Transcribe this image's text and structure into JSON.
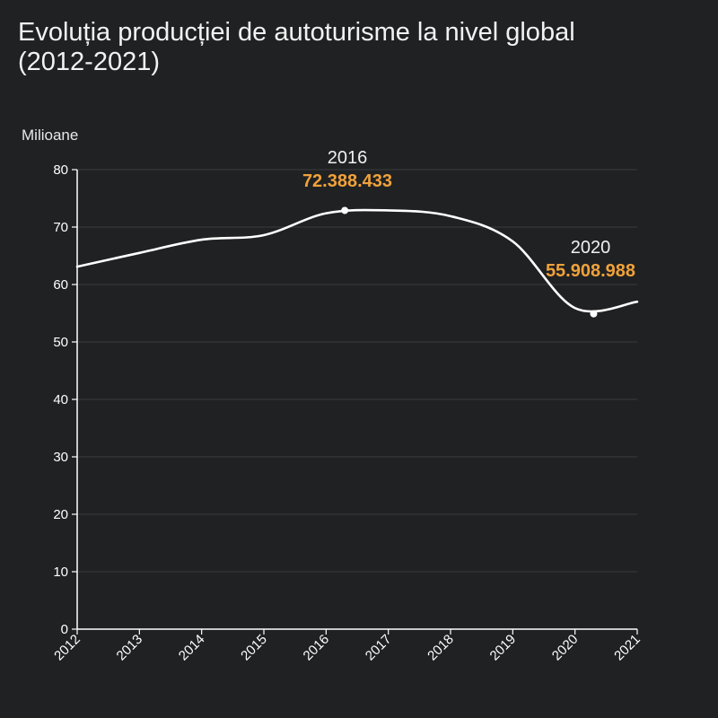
{
  "chart_data": {
    "type": "line",
    "title": "Evoluția producției de autoturisme la nivel global (2012-2021)",
    "ylabel": "Milioane",
    "xlabel": "",
    "x": [
      2012,
      2013,
      2014,
      2015,
      2016,
      2017,
      2018,
      2019,
      2020,
      2021
    ],
    "ylim": [
      0,
      80
    ],
    "yticks": [
      0,
      10,
      20,
      30,
      40,
      50,
      60,
      70,
      80
    ],
    "grid": true,
    "series": [
      {
        "values": [
          63.1,
          65.5,
          67.8,
          68.6,
          72.4,
          72.9,
          71.9,
          67.5,
          55.9,
          57.0
        ]
      }
    ],
    "annotations": [
      {
        "year": "2016",
        "value": "72.388.433",
        "point": {
          "x": 2016.3,
          "y": 72.9
        }
      },
      {
        "year": "2020",
        "value": "55.908.988",
        "point": {
          "x": 2020.3,
          "y": 54.9
        }
      }
    ],
    "colors": {
      "background": "#202123",
      "line": "#ffffff",
      "highlight": "#f0a23a",
      "grid": "#3a3b3d"
    }
  }
}
